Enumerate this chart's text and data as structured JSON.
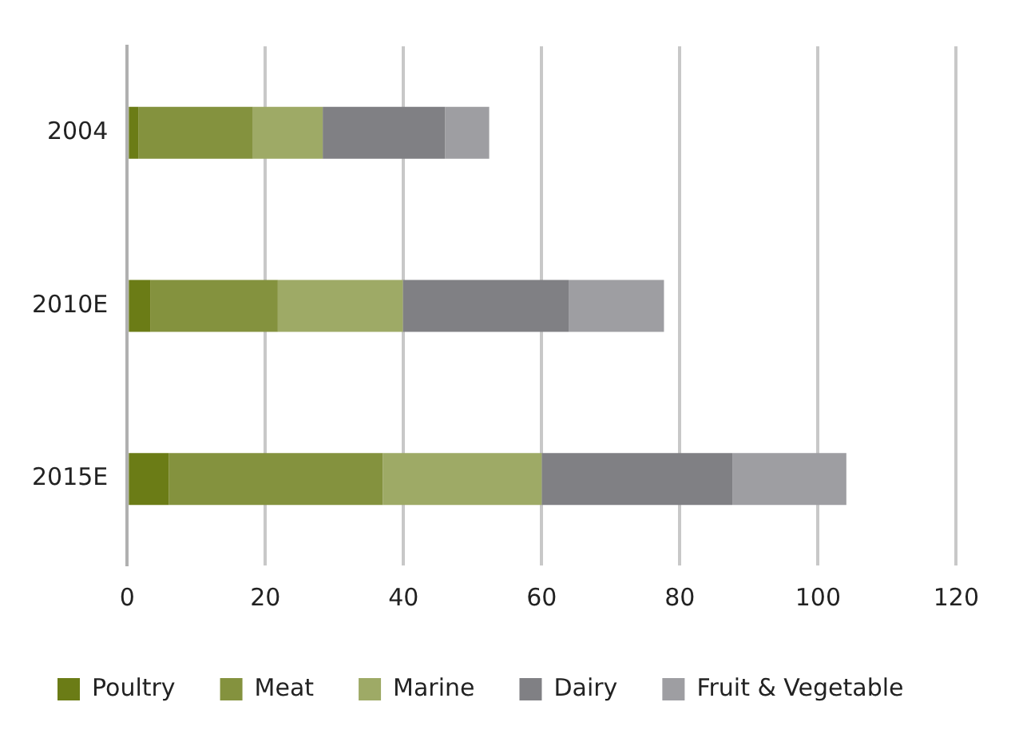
{
  "chart_data": {
    "type": "bar",
    "orientation": "horizontal",
    "stacked": true,
    "categories": [
      "2004",
      "2010E",
      "2015E"
    ],
    "series": [
      {
        "name": "Poultry",
        "color": "#6b7c16",
        "values": [
          1.6,
          3.4,
          6
        ]
      },
      {
        "name": "Meat",
        "color": "#84923e",
        "values": [
          16.6,
          18.4,
          31
        ]
      },
      {
        "name": "Marine",
        "color": "#9eaa66",
        "values": [
          10.1,
          18.1,
          23
        ]
      },
      {
        "name": "Dairy",
        "color": "#808084",
        "values": [
          17.7,
          24,
          27.6
        ]
      },
      {
        "name": "Fruit & Vegetable",
        "color": "#9e9ea2",
        "values": [
          6.4,
          13.8,
          16.5
        ]
      }
    ],
    "xlim": [
      0,
      120
    ],
    "xticks": [
      0,
      20,
      40,
      60,
      80,
      100,
      120
    ],
    "grid": "x",
    "legend": "bottom"
  }
}
